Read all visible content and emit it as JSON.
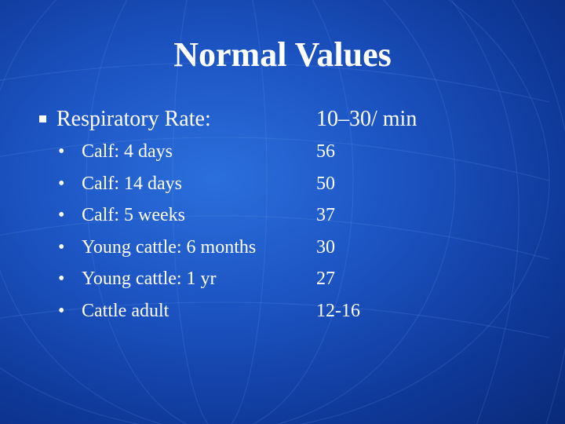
{
  "slide": {
    "title": "Normal Values",
    "main_item": {
      "label": "Respiratory Rate:",
      "value": "10–30/ min"
    },
    "sub_items": [
      {
        "label": "Calf: 4 days",
        "value": "56"
      },
      {
        "label": "Calf: 14 days",
        "value": "50"
      },
      {
        "label": "Calf: 5 weeks",
        "value": "37"
      },
      {
        "label": "Young cattle: 6 months",
        "value": "30"
      },
      {
        "label": "Young cattle: 1 yr",
        "value": "27"
      },
      {
        "label": "Cattle adult",
        "value": "12-16"
      }
    ],
    "sub_bullet": "•"
  },
  "colors": {
    "background": "#1b52c0",
    "text": "#ffffff"
  }
}
